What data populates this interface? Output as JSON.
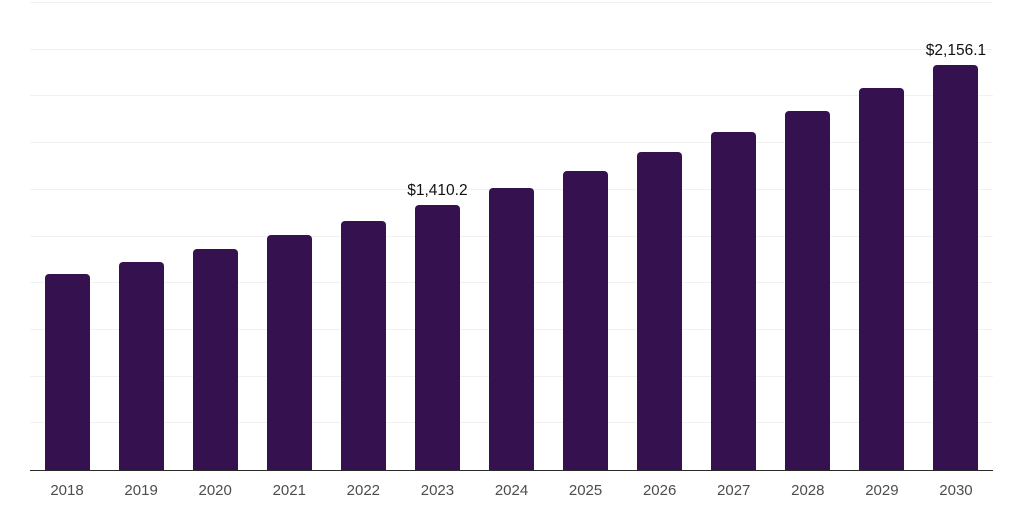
{
  "chart_data": {
    "type": "bar",
    "title": "",
    "xlabel": "",
    "ylabel": "",
    "categories": [
      "2018",
      "2019",
      "2020",
      "2021",
      "2022",
      "2023",
      "2024",
      "2025",
      "2026",
      "2027",
      "2028",
      "2029",
      "2030"
    ],
    "values": [
      1041,
      1106,
      1175,
      1249,
      1327,
      1410.2,
      1499,
      1592,
      1692,
      1798,
      1910,
      2030,
      2156.1
    ],
    "data_labels": {
      "2023": "$1,410.2",
      "2030": "$2,156.1"
    },
    "ylim": [
      0,
      2500
    ],
    "gridline_step": 250,
    "grid": "horizontal",
    "legend": "none",
    "y_axis_tick_labels": "none",
    "colors": {
      "bar": "#36114f",
      "gridline": "#f1f1f1",
      "axis_line": "#2b2b2b",
      "tick_label": "#4d4d4d",
      "data_label": "#111111",
      "background": "#ffffff"
    }
  }
}
